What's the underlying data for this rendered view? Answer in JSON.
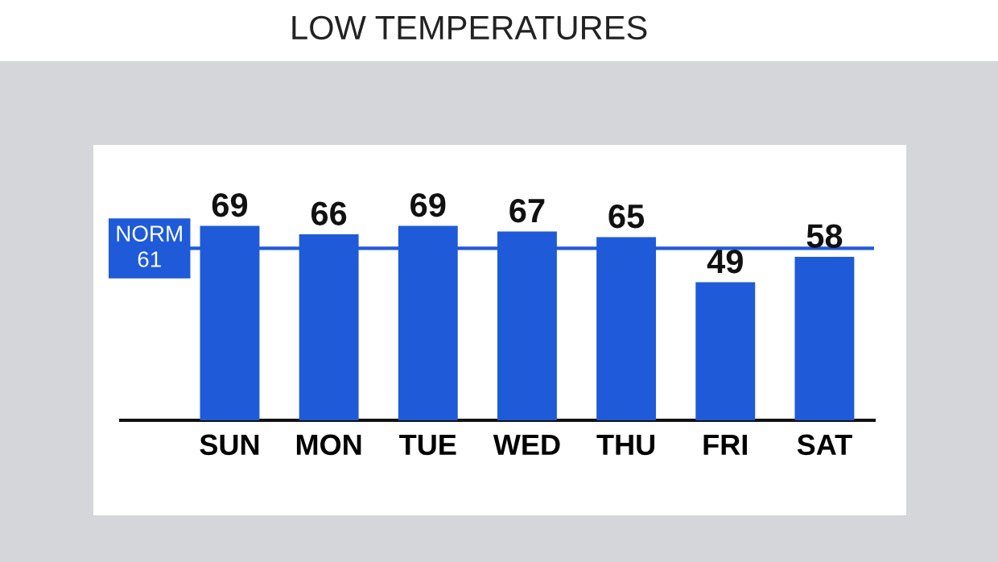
{
  "chart_data": {
    "type": "bar",
    "title": "LOW TEMPERATURES",
    "categories": [
      "SUN",
      "MON",
      "TUE",
      "WED",
      "THU",
      "FRI",
      "SAT"
    ],
    "values": [
      69,
      66,
      69,
      67,
      65,
      49,
      58
    ],
    "color": "#1f5ad8",
    "data_labels": true,
    "tick_labels": "x",
    "grid": false,
    "legend": false,
    "ref_lines": [
      {
        "axis": "y",
        "value": 61,
        "label": "NORM\n61",
        "color": "#1f5ad8"
      }
    ]
  }
}
